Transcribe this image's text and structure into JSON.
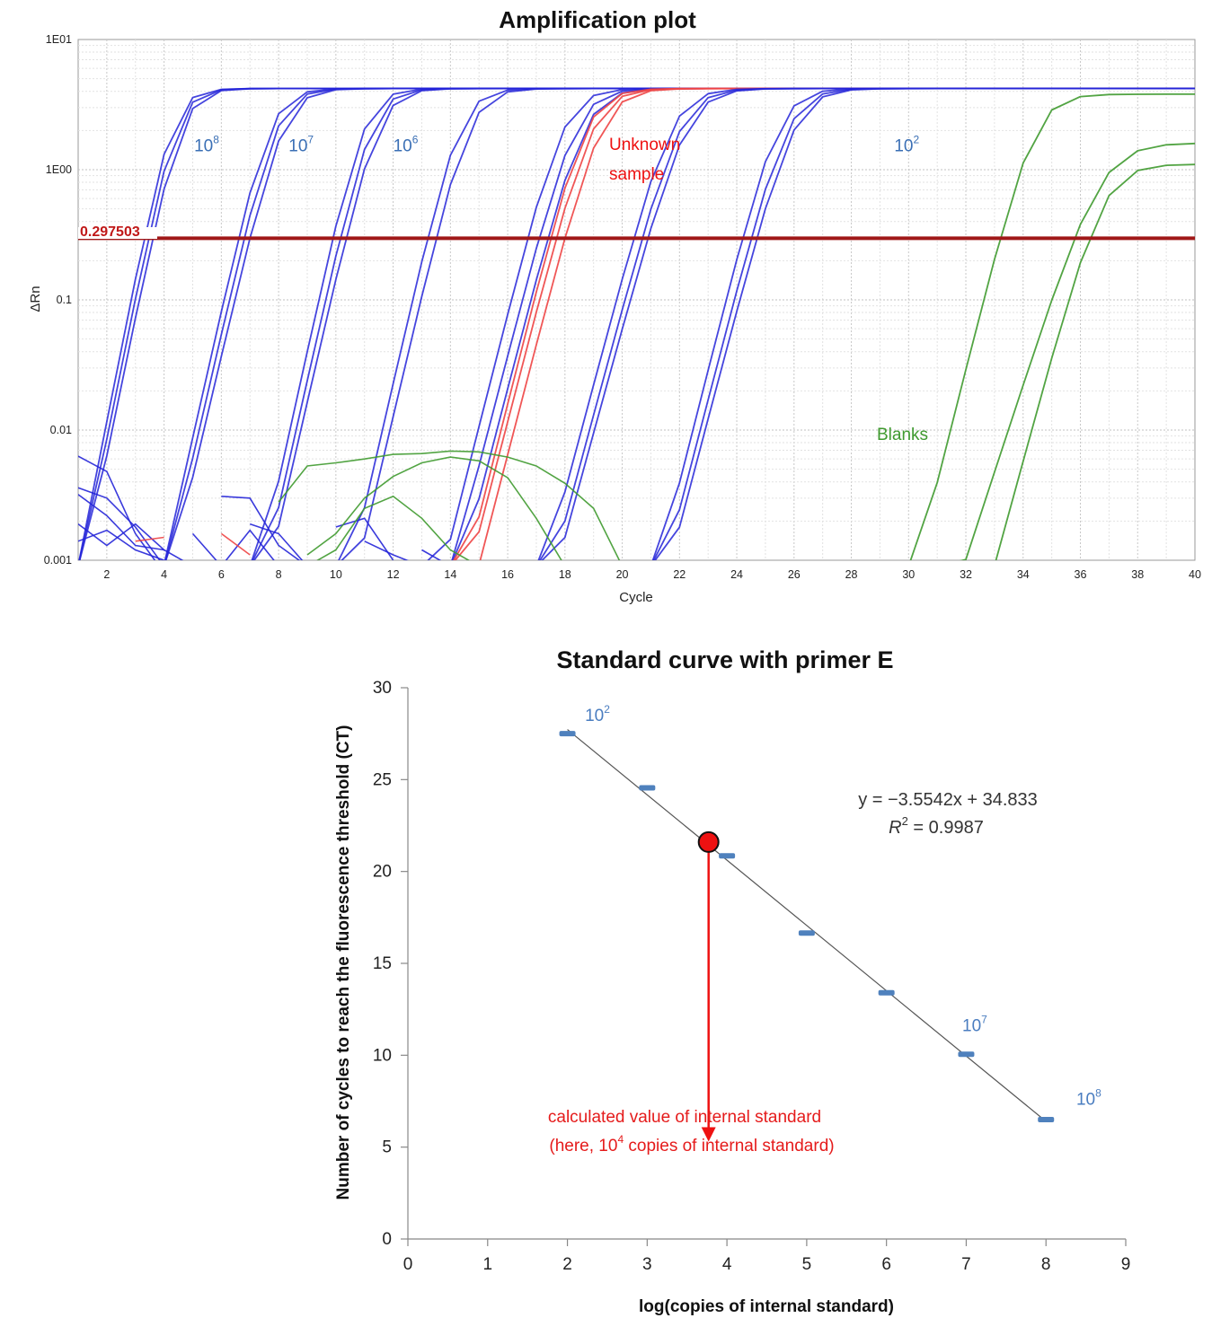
{
  "chart_data": [
    {
      "type": "line",
      "title": "Amplification plot",
      "xlabel": "Cycle",
      "ylabel": "ΔRn",
      "y_scale": "log",
      "xlim": [
        1,
        40
      ],
      "ylim": [
        0.001,
        10
      ],
      "x_ticks": [
        "2",
        "4",
        "6",
        "8",
        "10",
        "12",
        "14",
        "16",
        "18",
        "20",
        "22",
        "24",
        "26",
        "28",
        "30",
        "32",
        "34",
        "36",
        "38",
        "40"
      ],
      "y_ticks": [
        {
          "value": 10,
          "label": "1E01"
        },
        {
          "value": 1,
          "label": "1E00"
        },
        {
          "value": 0.1,
          "label": "0.1"
        },
        {
          "value": 0.01,
          "label": "0.01"
        },
        {
          "value": 0.001,
          "label": "0.001"
        }
      ],
      "grid": true,
      "threshold": {
        "value": 0.297503,
        "label": "0.297503",
        "color": "#a01818"
      },
      "plateau": 4.2,
      "colors": {
        "standards": "#2525d8",
        "standards_light": "#7f7fee",
        "unknown": "#ee4444",
        "blanks": "#3f9a2f"
      },
      "series": [
        {
          "group": "standard",
          "ct": 3.3,
          "k": 2.55
        },
        {
          "group": "standard",
          "ct": 3.45,
          "k": 2.5
        },
        {
          "group": "standard",
          "ct": 3.6,
          "k": 2.45
        },
        {
          "group": "standard",
          "ct": 6.6,
          "k": 2.25
        },
        {
          "group": "standard",
          "ct": 6.8,
          "k": 2.2
        },
        {
          "group": "standard",
          "ct": 7.0,
          "k": 2.15
        },
        {
          "group": "standard",
          "ct": 9.9,
          "k": 2.3
        },
        {
          "group": "standard",
          "ct": 10.15,
          "k": 2.25
        },
        {
          "group": "standard",
          "ct": 10.35,
          "k": 2.2
        },
        {
          "group": "standard",
          "ct": 13.2,
          "k": 2.2
        },
        {
          "group": "standard",
          "ct": 13.5,
          "k": 2.15
        },
        {
          "group": "standard",
          "ct": 16.7,
          "k": 2.0
        },
        {
          "group": "standard",
          "ct": 17.1,
          "k": 1.95
        },
        {
          "group": "standard",
          "ct": 17.4,
          "k": 1.95
        },
        {
          "group": "unknown",
          "ct": 17.5,
          "k": 2.0
        },
        {
          "group": "unknown",
          "ct": 17.7,
          "k": 1.95
        },
        {
          "group": "unknown",
          "ct": 18.0,
          "k": 1.95
        },
        {
          "group": "standard",
          "ct": 20.4,
          "k": 1.9
        },
        {
          "group": "standard",
          "ct": 20.7,
          "k": 1.88
        },
        {
          "group": "standard",
          "ct": 20.9,
          "k": 1.85
        },
        {
          "group": "standard",
          "ct": 24.2,
          "k": 2.0
        },
        {
          "group": "standard",
          "ct": 24.5,
          "k": 1.95
        },
        {
          "group": "standard",
          "ct": 24.7,
          "k": 1.92
        },
        {
          "group": "blank",
          "ct": 33.2,
          "k": 2.0,
          "max": 3.8
        },
        {
          "group": "blank",
          "ct": 35.8,
          "k": 1.55,
          "max": 1.6
        },
        {
          "group": "blank",
          "ct": 36.3,
          "k": 1.85,
          "max": 1.1
        }
      ],
      "noise": [
        {
          "color": "standards",
          "points": [
            [
              1,
              0.0063
            ],
            [
              2,
              0.0048
            ],
            [
              3,
              0.0016
            ],
            [
              4,
              0.0008
            ]
          ]
        },
        {
          "color": "standards",
          "points": [
            [
              1,
              0.0036
            ],
            [
              2,
              0.003
            ],
            [
              3,
              0.0018
            ],
            [
              4,
              0.0009
            ]
          ]
        },
        {
          "color": "standards",
          "points": [
            [
              1,
              0.0032
            ],
            [
              2,
              0.0022
            ],
            [
              3,
              0.0013
            ],
            [
              4,
              0.0012
            ]
          ]
        },
        {
          "color": "standards",
          "points": [
            [
              1,
              0.0019
            ],
            [
              2,
              0.0013
            ],
            [
              3,
              0.0019
            ],
            [
              4,
              0.0012
            ],
            [
              5,
              0.0009
            ]
          ]
        },
        {
          "color": "standards",
          "points": [
            [
              1,
              0.0014
            ],
            [
              2,
              0.0017
            ],
            [
              3,
              0.0012
            ],
            [
              4,
              0.001
            ]
          ]
        },
        {
          "color": "standards",
          "points": [
            [
              5,
              0.0016
            ],
            [
              6,
              0.0009
            ],
            [
              7,
              0.0017
            ],
            [
              8,
              0.0009
            ]
          ]
        },
        {
          "color": "standards",
          "points": [
            [
              6,
              0.0031
            ],
            [
              7,
              0.003
            ],
            [
              8,
              0.0013
            ],
            [
              9,
              0.0009
            ]
          ]
        },
        {
          "color": "standards",
          "points": [
            [
              7,
              0.0019
            ],
            [
              8,
              0.0016
            ],
            [
              9,
              0.0009
            ]
          ]
        },
        {
          "color": "standards",
          "points": [
            [
              10,
              0.0018
            ],
            [
              11,
              0.0021
            ],
            [
              12,
              0.001
            ]
          ]
        },
        {
          "color": "standards",
          "points": [
            [
              11,
              0.0014
            ],
            [
              12,
              0.0011
            ],
            [
              13,
              0.0009
            ]
          ]
        },
        {
          "color": "standards",
          "points": [
            [
              13,
              0.0012
            ],
            [
              14,
              0.0009
            ]
          ]
        },
        {
          "color": "unknown",
          "points": [
            [
              3,
              0.0014
            ],
            [
              4,
              0.0015
            ]
          ]
        },
        {
          "color": "unknown",
          "points": [
            [
              6,
              0.0016
            ],
            [
              7,
              0.0011
            ]
          ]
        },
        {
          "color": "blanks",
          "points": [
            [
              8,
              0.0028
            ],
            [
              9,
              0.0053
            ],
            [
              10,
              0.0056
            ],
            [
              11,
              0.006
            ],
            [
              12,
              0.0065
            ],
            [
              13,
              0.0066
            ],
            [
              14,
              0.0069
            ],
            [
              15,
              0.0068
            ],
            [
              16,
              0.0062
            ],
            [
              17,
              0.0053
            ],
            [
              18,
              0.0039
            ],
            [
              19,
              0.0025
            ],
            [
              20,
              0.0009
            ]
          ]
        },
        {
          "color": "blanks",
          "points": [
            [
              9,
              0.0011
            ],
            [
              10,
              0.0016
            ],
            [
              11,
              0.003
            ],
            [
              12,
              0.0044
            ],
            [
              13,
              0.0056
            ],
            [
              14,
              0.0062
            ],
            [
              15,
              0.0058
            ],
            [
              16,
              0.0043
            ],
            [
              17,
              0.0021
            ],
            [
              18,
              0.0009
            ]
          ]
        },
        {
          "color": "blanks",
          "points": [
            [
              9,
              0.0009
            ],
            [
              10,
              0.0012
            ],
            [
              11,
              0.0025
            ],
            [
              12,
              0.0031
            ],
            [
              13,
              0.0021
            ],
            [
              14,
              0.0012
            ],
            [
              15,
              0.0009
            ]
          ]
        }
      ],
      "annotations": [
        {
          "base": "10",
          "exp": "8",
          "x": 5.05,
          "y": 1.38,
          "color": "#3a6fb5"
        },
        {
          "base": "10",
          "exp": "7",
          "x": 8.35,
          "y": 1.38,
          "color": "#3a6fb5"
        },
        {
          "base": "10",
          "exp": "6",
          "x": 12.0,
          "y": 1.38,
          "color": "#3a6fb5"
        },
        {
          "base": "10",
          "exp": "2",
          "x": 29.5,
          "y": 1.38,
          "color": "#3a6fb5"
        }
      ],
      "unknown_label": [
        "Unknown",
        "sample"
      ],
      "blanks_label": "Blanks"
    },
    {
      "type": "scatter",
      "title": "Standard curve with primer E",
      "xlabel": "log(copies of internal standard)",
      "ylabel": "Number of cycles to reach the fluorescence threshold (CT)",
      "xlim": [
        0,
        9
      ],
      "ylim": [
        0,
        30
      ],
      "x_ticks": [
        "0",
        "1",
        "2",
        "3",
        "4",
        "5",
        "6",
        "7",
        "8",
        "9"
      ],
      "y_ticks": [
        "0",
        "5",
        "10",
        "15",
        "20",
        "25",
        "30"
      ],
      "points": [
        {
          "x": 2,
          "y": 27.5
        },
        {
          "x": 3,
          "y": 24.55
        },
        {
          "x": 4,
          "y": 20.85
        },
        {
          "x": 5,
          "y": 16.65
        },
        {
          "x": 6,
          "y": 13.4
        },
        {
          "x": 7,
          "y": 10.05
        },
        {
          "x": 8,
          "y": 6.5
        }
      ],
      "trendline": {
        "slope": -3.5542,
        "intercept": 34.833,
        "x_range": [
          2,
          8
        ]
      },
      "equation": "y = −3.5542x + 34.833",
      "r_squared": {
        "prefix": "R",
        "exp": "2",
        "value": " = 0.9987"
      },
      "unknown_point": {
        "x": 3.77,
        "y": 21.6,
        "color": "#ee1111"
      },
      "arrow_to_y": 5.3,
      "point_labels": [
        {
          "base": "10",
          "exp": "2",
          "x": 2.22,
          "y": 28.2
        },
        {
          "base": "10",
          "exp": "7",
          "x": 6.95,
          "y": 11.3
        },
        {
          "base": "10",
          "exp": "8",
          "x": 8.38,
          "y": 7.3
        }
      ],
      "callout": {
        "line1": "calculated value of internal standard",
        "line2_pre": "(here, 10",
        "line2_exp": "4",
        "line2_post": " copies of internal standard)",
        "color": "#e51b1b"
      }
    }
  ]
}
